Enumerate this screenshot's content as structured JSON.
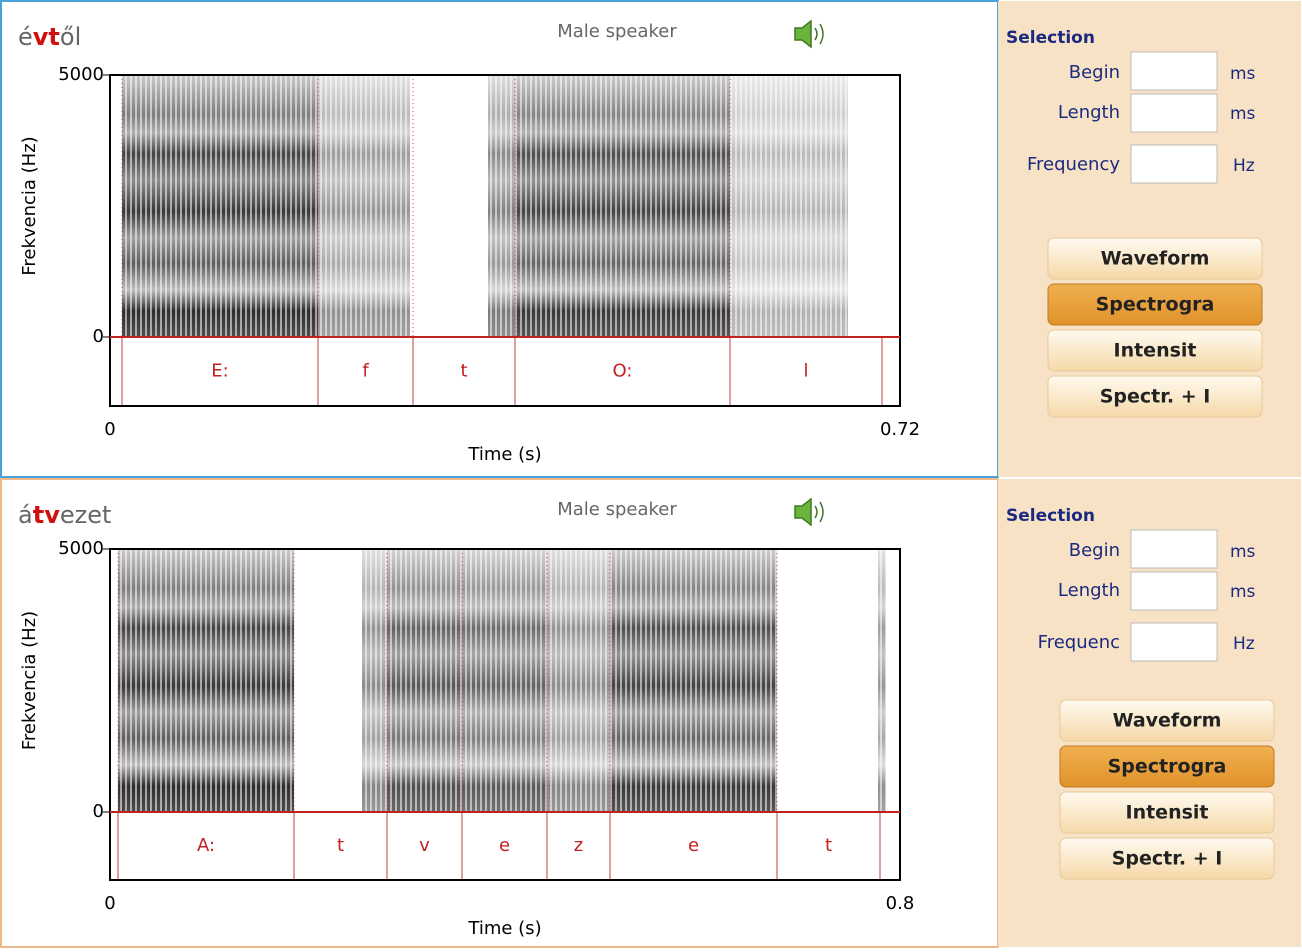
{
  "panels": [
    {
      "word": {
        "prefix": "é",
        "highlight": "vt",
        "suffix": "ől"
      },
      "speaker": "Male speaker",
      "y_axis_label": "Frekvencia (Hz)",
      "y_ticks": [
        "5000",
        "0"
      ],
      "x_axis_label": "Time (s)",
      "x_ticks": [
        "0",
        "0.72"
      ],
      "segments": [
        "E:",
        "f",
        "t",
        "O:",
        "l"
      ],
      "selection": {
        "title": "Selection",
        "begin_label": "Begin",
        "begin_unit": "ms",
        "length_label": "Length",
        "length_unit": "ms",
        "frequency_label": "Frequency",
        "frequency_unit": "Hz"
      },
      "buttons": [
        "Waveform",
        "Spectrogra",
        "Intensit",
        "Spectr. + I"
      ]
    },
    {
      "word": {
        "prefix": "á",
        "highlight": "tv",
        "suffix": "ezet"
      },
      "speaker": "Male speaker",
      "y_axis_label": "Frekvencia (Hz)",
      "y_ticks": [
        "5000",
        "0"
      ],
      "x_axis_label": "Time (s)",
      "x_ticks": [
        "0",
        "0.8"
      ],
      "segments": [
        "A:",
        "t",
        "v",
        "e",
        "z",
        "e",
        "t"
      ],
      "selection": {
        "title": "Selection",
        "begin_label": "Begin",
        "begin_unit": "ms",
        "length_label": "Length",
        "length_unit": "ms",
        "frequency_label": "Frequenc",
        "frequency_unit": "Hz"
      },
      "buttons": [
        "Waveform",
        "Spectrogra",
        "Intensit",
        "Spectr. + I"
      ]
    }
  ]
}
